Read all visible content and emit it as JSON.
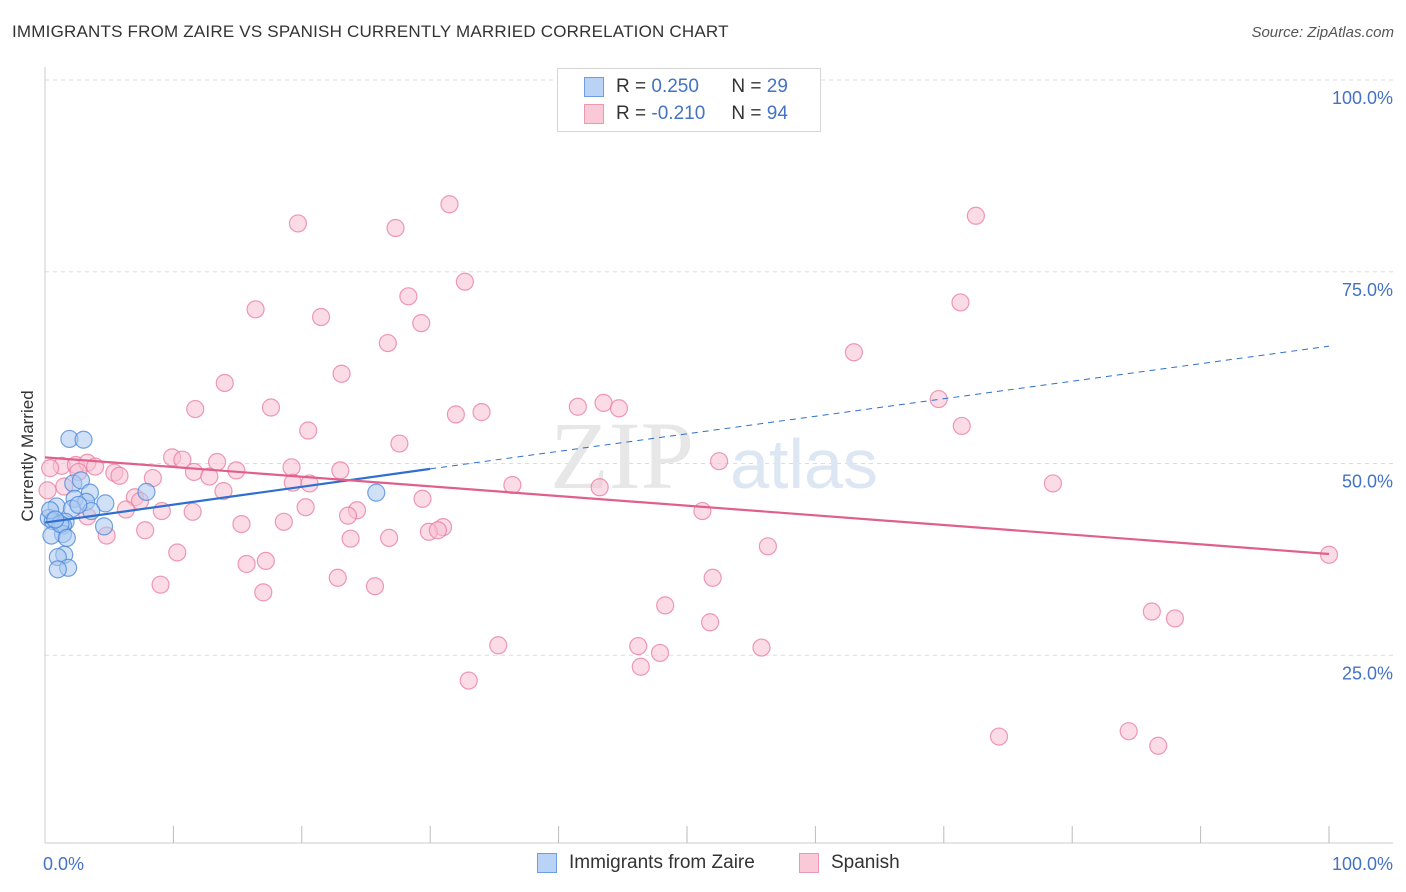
{
  "header": {
    "title": "IMMIGRANTS FROM ZAIRE VS SPANISH CURRENTLY MARRIED CORRELATION CHART",
    "source": "Source: ZipAtlas.com"
  },
  "watermark": {
    "zip": "ZIP",
    "atlas": "atlas"
  },
  "stats": {
    "zaire": {
      "r_label": "R =",
      "r": "0.250",
      "n_label": "N =",
      "n": "29"
    },
    "spanish": {
      "r_label": "R =",
      "r": "-0.210",
      "n_label": "N =",
      "n": "94"
    }
  },
  "legend": {
    "zaire": "Immigrants from Zaire",
    "spanish": "Spanish"
  },
  "chart_data": {
    "type": "scatter",
    "ylabel": "Currently Married",
    "x_tick_labels": {
      "min": "0.0%",
      "max": "100.0%"
    },
    "xlim": [
      0,
      100
    ],
    "ylim": [
      0,
      100
    ],
    "y_ticks": [
      {
        "value": 100,
        "label": "100.0%"
      },
      {
        "value": 75,
        "label": "75.0%"
      },
      {
        "value": 50,
        "label": "50.0%"
      },
      {
        "value": 25,
        "label": "25.0%"
      }
    ],
    "grid": true,
    "colors": {
      "zaire": "#4a86d8",
      "spanish": "#e8799c",
      "zaire_fill": "#a9c8f0",
      "spanish_fill": "#f7c0d1"
    },
    "series": [
      {
        "name": "Immigrants from Zaire",
        "color": "#4a86d8",
        "trend": {
          "x0": 0,
          "y0": 42.3,
          "x1": 30,
          "y1": 49.3,
          "dash_to_x": 100,
          "dash_to_y": 65.3
        },
        "points": [
          [
            1.9,
            53.2
          ],
          [
            3.0,
            53.1
          ],
          [
            2.2,
            47.4
          ],
          [
            2.8,
            47.8
          ],
          [
            3.5,
            46.2
          ],
          [
            7.9,
            46.3
          ],
          [
            2.3,
            45.4
          ],
          [
            3.2,
            45.0
          ],
          [
            4.7,
            44.8
          ],
          [
            0.9,
            44.4
          ],
          [
            2.1,
            44.1
          ],
          [
            3.6,
            43.8
          ],
          [
            0.3,
            42.9
          ],
          [
            0.6,
            42.5
          ],
          [
            1.6,
            42.4
          ],
          [
            1.4,
            41.9
          ],
          [
            4.6,
            41.8
          ],
          [
            1.4,
            40.8
          ],
          [
            0.5,
            40.6
          ],
          [
            1.5,
            38.1
          ],
          [
            1.0,
            37.8
          ],
          [
            1.8,
            36.4
          ],
          [
            1.0,
            36.2
          ],
          [
            25.8,
            46.2
          ],
          [
            0.4,
            43.9
          ],
          [
            1.2,
            42.1
          ],
          [
            2.6,
            44.6
          ],
          [
            0.8,
            42.7
          ],
          [
            1.7,
            40.3
          ]
        ]
      },
      {
        "name": "Spanish",
        "color": "#e8799c",
        "trend": {
          "x0": 0,
          "y0": 50.8,
          "x1": 100,
          "y1": 38.2
        },
        "points": [
          [
            31.5,
            83.8
          ],
          [
            19.7,
            81.3
          ],
          [
            27.3,
            80.7
          ],
          [
            72.5,
            82.3
          ],
          [
            32.7,
            73.7
          ],
          [
            71.3,
            71.0
          ],
          [
            28.3,
            71.8
          ],
          [
            16.4,
            70.1
          ],
          [
            21.5,
            69.1
          ],
          [
            29.3,
            68.3
          ],
          [
            26.7,
            65.7
          ],
          [
            63.0,
            64.5
          ],
          [
            23.1,
            61.7
          ],
          [
            14.0,
            60.5
          ],
          [
            69.6,
            58.4
          ],
          [
            11.7,
            57.1
          ],
          [
            17.6,
            57.3
          ],
          [
            41.5,
            57.4
          ],
          [
            43.5,
            57.9
          ],
          [
            44.7,
            57.2
          ],
          [
            32.0,
            56.4
          ],
          [
            34.0,
            56.7
          ],
          [
            71.4,
            54.9
          ],
          [
            20.5,
            54.3
          ],
          [
            27.6,
            52.6
          ],
          [
            9.9,
            50.8
          ],
          [
            10.7,
            50.5
          ],
          [
            13.4,
            50.2
          ],
          [
            1.3,
            49.7
          ],
          [
            2.4,
            49.8
          ],
          [
            3.3,
            50.1
          ],
          [
            3.9,
            49.6
          ],
          [
            5.4,
            48.8
          ],
          [
            5.8,
            48.4
          ],
          [
            11.6,
            48.9
          ],
          [
            14.9,
            49.1
          ],
          [
            19.2,
            49.5
          ],
          [
            23.0,
            49.1
          ],
          [
            52.5,
            50.3
          ],
          [
            12.8,
            48.3
          ],
          [
            8.4,
            48.1
          ],
          [
            19.3,
            47.5
          ],
          [
            20.6,
            47.4
          ],
          [
            36.4,
            47.2
          ],
          [
            43.2,
            46.9
          ],
          [
            13.9,
            46.4
          ],
          [
            7.0,
            45.6
          ],
          [
            7.4,
            45.1
          ],
          [
            29.4,
            45.4
          ],
          [
            20.3,
            44.3
          ],
          [
            6.3,
            44.0
          ],
          [
            11.5,
            43.7
          ],
          [
            9.1,
            43.8
          ],
          [
            24.3,
            43.9
          ],
          [
            23.6,
            43.2
          ],
          [
            51.2,
            43.8
          ],
          [
            78.5,
            47.4
          ],
          [
            3.3,
            43.1
          ],
          [
            15.3,
            42.1
          ],
          [
            18.6,
            42.4
          ],
          [
            31.0,
            41.7
          ],
          [
            29.9,
            41.1
          ],
          [
            30.6,
            41.3
          ],
          [
            7.8,
            41.3
          ],
          [
            4.8,
            40.6
          ],
          [
            23.8,
            40.2
          ],
          [
            26.8,
            40.3
          ],
          [
            56.3,
            39.2
          ],
          [
            10.3,
            38.4
          ],
          [
            17.2,
            37.3
          ],
          [
            15.7,
            36.9
          ],
          [
            22.8,
            35.1
          ],
          [
            52.0,
            35.1
          ],
          [
            9.0,
            34.2
          ],
          [
            25.7,
            34.0
          ],
          [
            17.0,
            33.2
          ],
          [
            48.3,
            31.5
          ],
          [
            86.2,
            30.7
          ],
          [
            88.0,
            29.8
          ],
          [
            51.8,
            29.3
          ],
          [
            35.3,
            26.3
          ],
          [
            46.2,
            26.2
          ],
          [
            47.9,
            25.3
          ],
          [
            55.8,
            26.0
          ],
          [
            46.4,
            23.5
          ],
          [
            33.0,
            21.7
          ],
          [
            84.4,
            15.1
          ],
          [
            74.3,
            14.4
          ],
          [
            86.7,
            13.2
          ],
          [
            100.0,
            38.1
          ],
          [
            0.4,
            49.4
          ],
          [
            2.6,
            48.9
          ],
          [
            1.5,
            47.0
          ],
          [
            0.2,
            46.5
          ]
        ]
      }
    ]
  }
}
